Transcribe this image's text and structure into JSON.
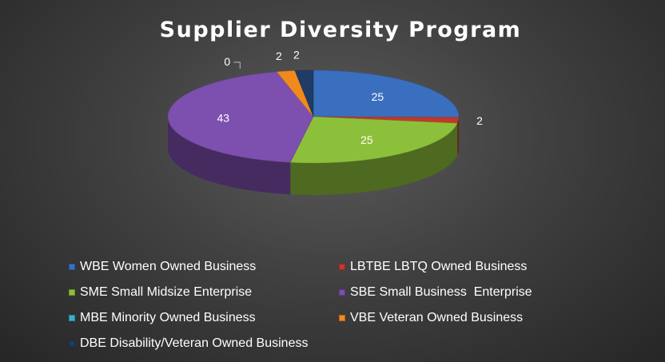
{
  "chart_data": {
    "type": "pie",
    "title": "Supplier Diversity Program",
    "three_d": true,
    "legend_position": "bottom",
    "slices": [
      {
        "label": "WBE Women Owned Business",
        "value": 25,
        "display": "25",
        "color": "#3a6fc0"
      },
      {
        "label": "LBTBE LBTQ Owned Business",
        "value": 2,
        "display": "2",
        "color": "#c0392b"
      },
      {
        "label": "SME Small Midsize Enterprise",
        "value": 25,
        "display": "25",
        "color": "#8cc03a"
      },
      {
        "label": "SBE Small Business  Enterprise",
        "value": 43,
        "display": "43",
        "color": "#7d4fae"
      },
      {
        "label": "MBE Minority Owned Business",
        "value": 0,
        "display": "0",
        "color": "#3ab0cc"
      },
      {
        "label": "VBE Veteran Owned Business",
        "value": 2,
        "display": "2",
        "color": "#f08a1c"
      },
      {
        "label": "DBE Disability/Veteran Owned Business",
        "value": 2,
        "display": "2",
        "color": "#1f3b66"
      }
    ]
  }
}
